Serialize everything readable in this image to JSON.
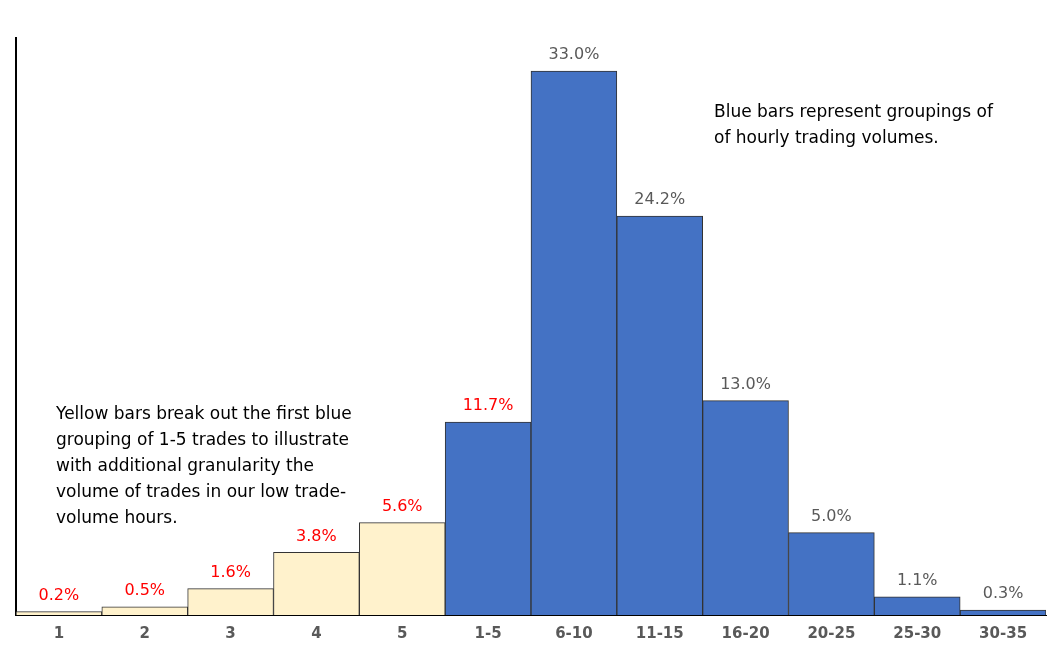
{
  "chart_data": {
    "type": "bar",
    "categories": [
      "1",
      "2",
      "3",
      "4",
      "5",
      "1-5",
      "6-10",
      "11-15",
      "16-20",
      "20-25",
      "25-30",
      "30-35"
    ],
    "values": [
      0.2,
      0.5,
      1.6,
      3.8,
      5.6,
      11.7,
      33.0,
      24.2,
      13.0,
      5.0,
      1.1,
      0.3
    ],
    "colors": [
      "#fff2cc",
      "#fff2cc",
      "#fff2cc",
      "#fff2cc",
      "#fff2cc",
      "#4472c4",
      "#4472c4",
      "#4472c4",
      "#4472c4",
      "#4472c4",
      "#4472c4",
      "#4472c4"
    ],
    "value_labels": [
      "0.2%",
      "0.5%",
      "1.6%",
      "3.8%",
      "5.6%",
      "11.7%",
      "33.0%",
      "24.2%",
      "13.0%",
      "5.0%",
      "1.1%",
      "0.3%"
    ],
    "annotations": [
      "Blue bars represent groupings of of hourly trading volumes.",
      "Yellow bars break out the first blue grouping of 1-5 trades to illustrate with additional granularity the volume of trades in our low trade-volume hours."
    ],
    "grid": false,
    "legend": false
  }
}
